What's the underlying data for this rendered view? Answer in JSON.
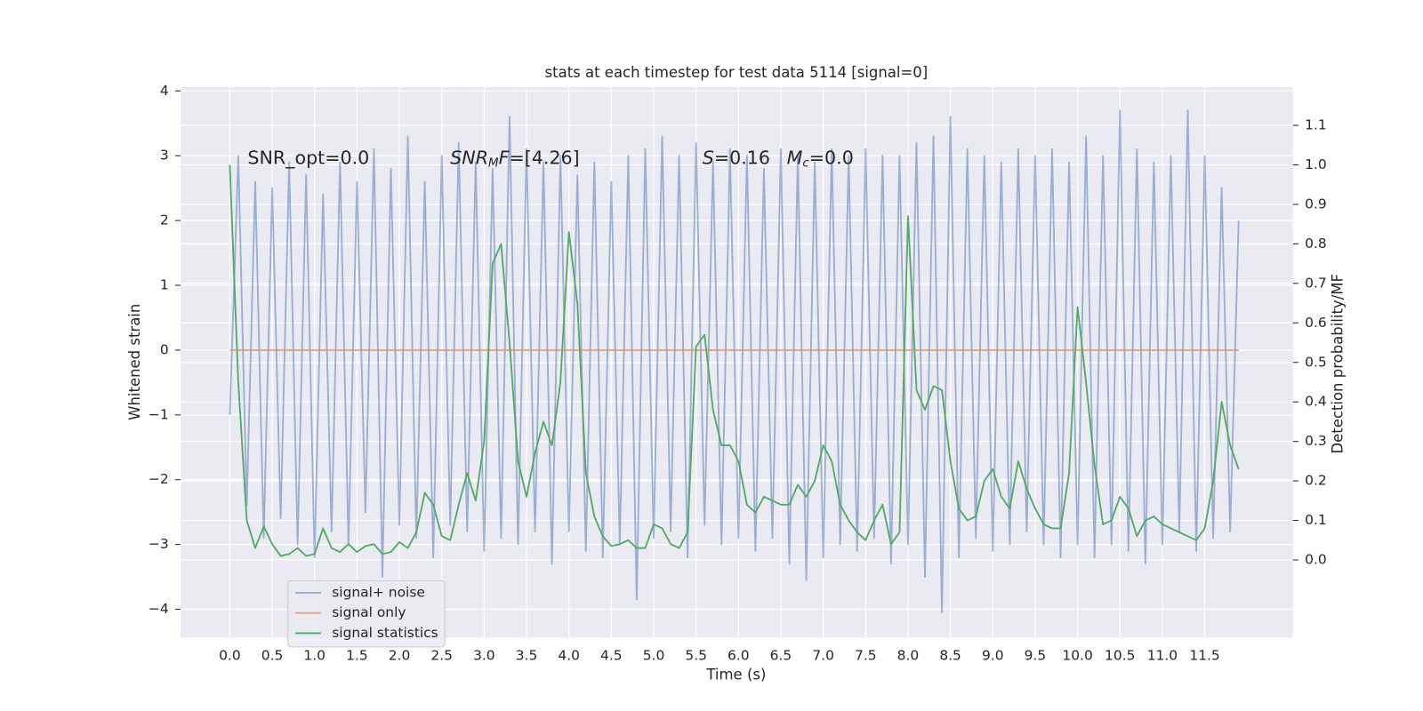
{
  "chart_data": {
    "type": "line",
    "title": "stats at each timestep for test data 5114 [signal=0]",
    "x_label": "Time (s)",
    "y_label": "Whitened strain",
    "y2_label": "Detection probability/MF",
    "annotations": [
      [
        "SNR_opt=0.0"
      ],
      [
        "SNR",
        "M",
        "F",
        "=[4.26]"
      ],
      [
        "S",
        "=0.16"
      ],
      [
        "M",
        "c",
        "=0.0"
      ]
    ],
    "x": [
      0.0,
      0.1,
      0.2,
      0.3,
      0.4,
      0.5,
      0.6,
      0.7,
      0.8,
      0.9,
      1.0,
      1.1,
      1.2,
      1.3,
      1.4,
      1.5,
      1.6,
      1.7,
      1.8,
      1.9,
      2.0,
      2.1,
      2.2,
      2.3,
      2.4,
      2.5,
      2.6,
      2.7,
      2.8,
      2.9,
      3.0,
      3.1,
      3.2,
      3.3,
      3.4,
      3.5,
      3.6,
      3.7,
      3.8,
      3.9,
      4.0,
      4.1,
      4.2,
      4.3,
      4.4,
      4.5,
      4.6,
      4.7,
      4.8,
      4.9,
      5.0,
      5.1,
      5.2,
      5.3,
      5.4,
      5.5,
      5.6,
      5.7,
      5.8,
      5.9,
      6.0,
      6.1,
      6.2,
      6.3,
      6.4,
      6.5,
      6.6,
      6.7,
      6.8,
      6.9,
      7.0,
      7.1,
      7.2,
      7.3,
      7.4,
      7.5,
      7.6,
      7.7,
      7.8,
      7.9,
      8.0,
      8.1,
      8.2,
      8.3,
      8.4,
      8.5,
      8.6,
      8.7,
      8.8,
      8.9,
      9.0,
      9.1,
      9.2,
      9.3,
      9.4,
      9.5,
      9.6,
      9.7,
      9.8,
      9.9,
      10.0,
      10.1,
      10.2,
      10.3,
      10.4,
      10.5,
      10.6,
      10.7,
      10.8,
      10.9,
      11.0,
      11.1,
      11.2,
      11.3,
      11.4,
      11.5,
      11.6,
      11.7,
      11.8,
      11.9
    ],
    "series": [
      {
        "name": "signal+ noise",
        "color": "#4c72b0",
        "opacity": 0.5,
        "values": [
          -1.0,
          3.0,
          -2.4,
          2.6,
          -2.9,
          2.5,
          -2.6,
          2.9,
          -3.0,
          2.7,
          -3.2,
          2.4,
          -2.8,
          2.9,
          -3.0,
          2.6,
          -2.5,
          3.1,
          -3.5,
          2.8,
          -2.7,
          3.3,
          -2.9,
          2.6,
          -3.2,
          3.0,
          -2.7,
          3.2,
          -2.8,
          2.9,
          -3.1,
          2.8,
          -2.9,
          3.6,
          -3.0,
          3.1,
          -2.8,
          2.9,
          -3.3,
          3.0,
          -2.8,
          2.7,
          -3.1,
          2.9,
          -3.2,
          2.6,
          -3.0,
          3.0,
          -3.85,
          3.1,
          -2.9,
          3.3,
          -2.8,
          3.0,
          -3.2,
          3.2,
          -2.7,
          2.9,
          -3.0,
          3.1,
          -2.9,
          3.0,
          -3.1,
          2.8,
          -2.9,
          3.1,
          -3.3,
          3.0,
          -3.55,
          2.9,
          -3.2,
          3.1,
          -3.0,
          3.0,
          -3.1,
          3.1,
          -2.9,
          3.0,
          -3.3,
          3.0,
          -3.0,
          3.2,
          -3.5,
          3.3,
          -4.05,
          3.6,
          -3.2,
          3.1,
          -2.9,
          3.0,
          -3.1,
          2.9,
          -3.0,
          3.1,
          -2.8,
          3.0,
          -3.0,
          3.1,
          -3.2,
          2.9,
          -3.0,
          3.3,
          -3.2,
          3.0,
          -3.0,
          3.7,
          -3.1,
          3.1,
          -3.3,
          2.9,
          -3.0,
          3.0,
          -2.8,
          3.7,
          -3.1,
          3.0,
          -2.9,
          2.5,
          -2.8,
          2.0
        ]
      },
      {
        "name": "signal only",
        "color": "#dd8452",
        "opacity": 0.7,
        "x": [
          0.0,
          11.9
        ],
        "values": [
          0,
          0
        ]
      },
      {
        "name": "signal statistics",
        "color": "#55a868",
        "opacity": 1,
        "axis": "y2",
        "values": [
          1.0,
          0.45,
          0.1,
          0.03,
          0.085,
          0.04,
          0.01,
          0.015,
          0.03,
          0.01,
          0.015,
          0.08,
          0.03,
          0.02,
          0.04,
          0.02,
          0.035,
          0.04,
          0.015,
          0.02,
          0.045,
          0.03,
          0.07,
          0.17,
          0.14,
          0.06,
          0.05,
          0.14,
          0.22,
          0.15,
          0.3,
          0.75,
          0.8,
          0.55,
          0.25,
          0.16,
          0.27,
          0.35,
          0.29,
          0.45,
          0.83,
          0.65,
          0.22,
          0.11,
          0.06,
          0.035,
          0.04,
          0.05,
          0.03,
          0.03,
          0.09,
          0.08,
          0.04,
          0.03,
          0.07,
          0.54,
          0.57,
          0.38,
          0.29,
          0.29,
          0.25,
          0.14,
          0.12,
          0.16,
          0.15,
          0.14,
          0.14,
          0.19,
          0.16,
          0.2,
          0.29,
          0.25,
          0.14,
          0.1,
          0.07,
          0.05,
          0.1,
          0.14,
          0.04,
          0.07,
          0.87,
          0.43,
          0.38,
          0.44,
          0.43,
          0.25,
          0.13,
          0.1,
          0.11,
          0.2,
          0.23,
          0.16,
          0.13,
          0.25,
          0.18,
          0.13,
          0.09,
          0.08,
          0.08,
          0.22,
          0.64,
          0.45,
          0.24,
          0.09,
          0.1,
          0.16,
          0.13,
          0.06,
          0.1,
          0.11,
          0.09,
          0.08,
          0.07,
          0.06,
          0.05,
          0.08,
          0.2,
          0.4,
          0.29,
          0.23
        ]
      }
    ],
    "xlim": [
      -0.58,
      12.54
    ],
    "ylim": [
      -4.44,
      4.06
    ],
    "y2lim": [
      -0.197,
      1.197
    ],
    "xticks": [
      {
        "value": 0,
        "label": "0.0"
      },
      0.5,
      {
        "value": 1,
        "label": "1.0"
      },
      1.5,
      {
        "value": 2,
        "label": "2.0"
      },
      2.5,
      {
        "value": 3,
        "label": "3.0"
      },
      3.5,
      {
        "value": 4,
        "label": "4.0"
      },
      4.5,
      {
        "value": 5,
        "label": "5.0"
      },
      5.5,
      {
        "value": 6,
        "label": "6.0"
      },
      6.5,
      {
        "value": 7,
        "label": "7.0"
      },
      7.5,
      {
        "value": 8,
        "label": "8.0"
      },
      8.5,
      {
        "value": 9,
        "label": "9.0"
      },
      9.5,
      {
        "value": 10,
        "label": "10.0"
      },
      10.5,
      {
        "value": 11,
        "label": "11.0"
      },
      11.5
    ],
    "yticks": [
      {
        "value": -4,
        "label": "−4"
      },
      {
        "value": -3,
        "label": "−3"
      },
      {
        "value": -2,
        "label": "−2"
      },
      {
        "value": -1,
        "label": "−1"
      },
      0,
      1,
      2,
      3,
      4
    ],
    "y2ticks": [
      {
        "value": 0,
        "label": "0.0"
      },
      0.1,
      0.2,
      0.3,
      0.4,
      0.5,
      0.6,
      0.7,
      0.8,
      0.9,
      {
        "value": 1,
        "label": "1.0"
      },
      1.1
    ],
    "grid": true,
    "legend_loc": "lower left"
  }
}
